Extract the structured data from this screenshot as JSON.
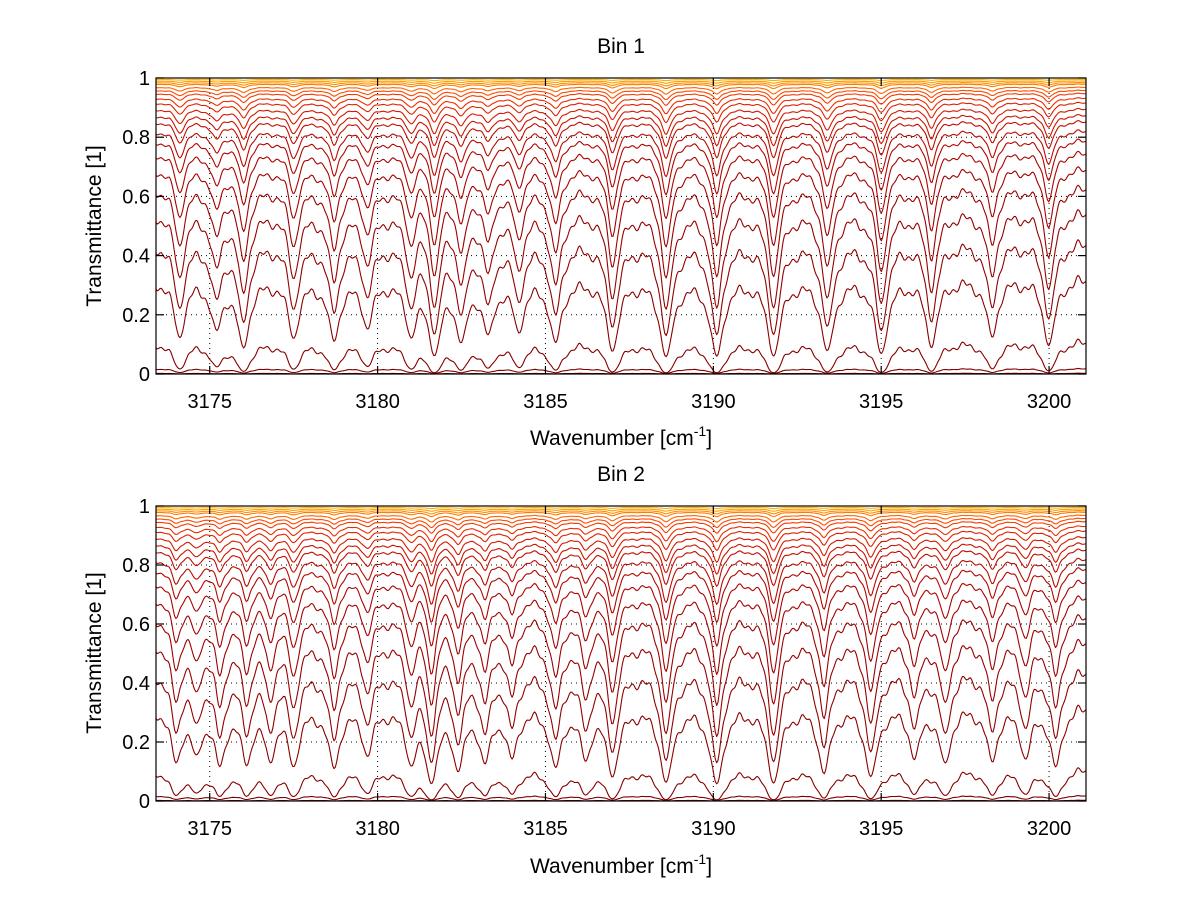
{
  "chart_data": [
    {
      "type": "line",
      "title": "Bin 1",
      "xlabel": "Wavenumber [cm",
      "xlabel_superscript": "-1",
      "xlabel_suffix": "]",
      "ylabel": "Transmittance [1]",
      "xlim": [
        3173.4,
        3201.1
      ],
      "ylim": [
        0,
        1
      ],
      "xticks": [
        3175,
        3180,
        3185,
        3190,
        3195,
        3200
      ],
      "xtick_labels": [
        "3175",
        "3180",
        "3185",
        "3190",
        "3195",
        "3200"
      ],
      "yticks": [
        0,
        0.2,
        0.4,
        0.6,
        0.8,
        1
      ],
      "ytick_labels": [
        "0",
        "0.2",
        "0.4",
        "0.6",
        "0.8",
        "1"
      ],
      "grid": true,
      "line_centers": [
        3174.1,
        3175.2,
        3176.0,
        3177.5,
        3178.7,
        3179.7,
        3181.0,
        3181.7,
        3182.5,
        3183.3,
        3184.2,
        3185.3,
        3187.0,
        3188.6,
        3190.1,
        3191.8,
        3193.4,
        3195.0,
        3196.5,
        3198.3,
        3200.0
      ],
      "line_depths": [
        0.55,
        0.45,
        0.75,
        0.55,
        0.6,
        0.4,
        0.5,
        0.9,
        0.6,
        0.5,
        0.45,
        0.65,
        0.8,
        1.0,
        0.98,
        0.95,
        0.85,
        0.9,
        0.7,
        0.55,
        0.7
      ],
      "series_continuum": [
        0.995,
        0.99,
        0.985,
        0.98,
        0.97,
        0.96,
        0.95,
        0.935,
        0.92,
        0.9,
        0.88,
        0.86,
        0.83,
        0.8,
        0.76,
        0.71,
        0.65,
        0.57,
        0.47,
        0.35,
        0.13,
        0.02,
        0.003
      ],
      "series_colors": [
        "#ffb000",
        "#ffa000",
        "#ff9000",
        "#ff7a00",
        "#ff6400",
        "#ff4a00",
        "#f53a00",
        "#ea2e00",
        "#de2200",
        "#d41a00",
        "#ca1400",
        "#c00e00",
        "#b80a00",
        "#b00600",
        "#aa0400",
        "#a40000",
        "#9c0000",
        "#960000",
        "#900000",
        "#8a0000",
        "#850000",
        "#800000",
        "#780000"
      ]
    },
    {
      "type": "line",
      "title": "Bin 2",
      "xlabel": "Wavenumber [cm",
      "xlabel_superscript": "-1",
      "xlabel_suffix": "]",
      "ylabel": "Transmittance [1]",
      "xlim": [
        3173.4,
        3201.1
      ],
      "ylim": [
        0,
        1
      ],
      "xticks": [
        3175,
        3180,
        3185,
        3190,
        3195,
        3200
      ],
      "xtick_labels": [
        "3175",
        "3180",
        "3185",
        "3190",
        "3195",
        "3200"
      ],
      "yticks": [
        0,
        0.2,
        0.4,
        0.6,
        0.8,
        1
      ],
      "ytick_labels": [
        "0",
        "0.2",
        "0.4",
        "0.6",
        "0.8",
        "1"
      ],
      "grid": true,
      "line_centers": [
        3174.0,
        3174.6,
        3175.3,
        3176.1,
        3176.8,
        3177.5,
        3178.7,
        3179.7,
        3181.0,
        3181.6,
        3182.4,
        3183.2,
        3184.0,
        3185.3,
        3186.2,
        3187.0,
        3188.6,
        3190.1,
        3191.8,
        3193.3,
        3194.7,
        3196.0,
        3196.9,
        3198.3,
        3199.3,
        3200.2
      ],
      "line_depths": [
        0.5,
        0.4,
        0.55,
        0.5,
        0.45,
        0.55,
        0.6,
        0.4,
        0.5,
        0.9,
        0.6,
        0.5,
        0.45,
        0.6,
        0.45,
        0.75,
        0.95,
        1.0,
        0.95,
        0.7,
        0.8,
        0.45,
        0.55,
        0.5,
        0.45,
        0.6
      ],
      "series_continuum": [
        0.995,
        0.99,
        0.985,
        0.98,
        0.97,
        0.96,
        0.95,
        0.935,
        0.92,
        0.9,
        0.88,
        0.86,
        0.83,
        0.8,
        0.76,
        0.71,
        0.65,
        0.57,
        0.47,
        0.35,
        0.13,
        0.02,
        0.003
      ],
      "series_colors": [
        "#ffb000",
        "#ffa000",
        "#ff9000",
        "#ff7a00",
        "#ff6400",
        "#ff4a00",
        "#f53a00",
        "#ea2e00",
        "#de2200",
        "#d41a00",
        "#ca1400",
        "#c00e00",
        "#b80a00",
        "#b00600",
        "#aa0400",
        "#a40000",
        "#9c0000",
        "#960000",
        "#900000",
        "#8a0000",
        "#850000",
        "#800000",
        "#780000"
      ]
    }
  ]
}
